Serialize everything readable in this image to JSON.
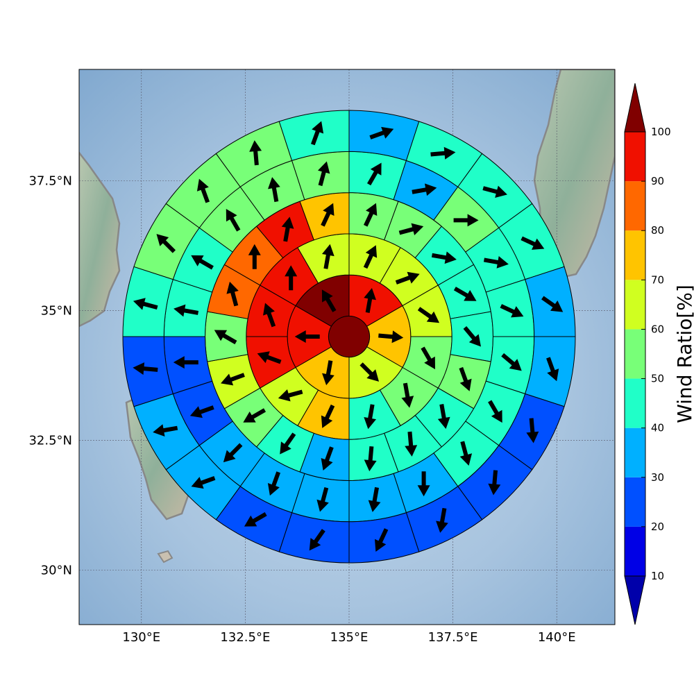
{
  "chart_data": {
    "type": "polar-sector-map",
    "title": "",
    "center_lon": 135.0,
    "center_lat": 34.5,
    "lon_ticks": [
      130,
      132.5,
      135,
      137.5,
      140
    ],
    "lon_tick_labels": [
      "130°E",
      "132.5°E",
      "135°E",
      "137.5°E",
      "140°E"
    ],
    "lat_ticks": [
      30,
      32.5,
      35,
      37.5
    ],
    "lat_tick_labels": [
      "30°N",
      "32.5°N",
      "35°N",
      "37.5°N"
    ],
    "xlim": [
      128.5,
      141.4
    ],
    "ylim": [
      28.95,
      39.65
    ],
    "grid": true,
    "colorbar": {
      "label": "Wind Ratio[%]",
      "levels": [
        10,
        20,
        30,
        40,
        50,
        60,
        70,
        80,
        90,
        100
      ],
      "level_labels": [
        "10",
        "20",
        "30",
        "40",
        "50",
        "60",
        "70",
        "80",
        "90",
        "100"
      ],
      "colors": [
        "#0000aa",
        "#0000e6",
        "#0050ff",
        "#00b0ff",
        "#20ffc8",
        "#78ff78",
        "#d0ff20",
        "#ffc400",
        "#ff6800",
        "#f01000",
        "#800000"
      ],
      "extend": "both"
    },
    "center": {
      "wind_ratio": 100,
      "dir_deg": 0,
      "arrow": false
    },
    "rings": [
      {
        "radius_km": [
          50,
          150
        ],
        "values": [
          95,
          75,
          65,
          70,
          95,
          100
        ],
        "arrow_dir_deg": [
          10,
          95,
          135,
          190,
          270,
          330
        ]
      },
      {
        "radius_km": [
          150,
          250
        ],
        "values": [
          65,
          65,
          65,
          55,
          55,
          45,
          70,
          65,
          95,
          95,
          95,
          65
        ],
        "arrow_dir_deg": [
          25,
          70,
          125,
          150,
          170,
          190,
          205,
          255,
          290,
          340,
          0,
          10
        ]
      },
      {
        "radius_km": [
          250,
          350
        ],
        "values": [
          55,
          55,
          45,
          45,
          45,
          55,
          45,
          45,
          45,
          35,
          45,
          55,
          65,
          55,
          85,
          85,
          95,
          75
        ],
        "arrow_dir_deg": [
          25,
          75,
          100,
          120,
          140,
          160,
          170,
          175,
          185,
          200,
          215,
          240,
          250,
          300,
          345,
          0,
          10,
          25
        ]
      },
      {
        "radius_km": [
          350,
          450
        ],
        "values": [
          45,
          35,
          55,
          45,
          45,
          45,
          45,
          45,
          35,
          35,
          35,
          35,
          35,
          25,
          25,
          45,
          45,
          55,
          55,
          55
        ],
        "arrow_dir_deg": [
          30,
          80,
          90,
          100,
          115,
          130,
          150,
          165,
          180,
          190,
          195,
          200,
          225,
          250,
          270,
          280,
          300,
          330,
          350,
          15
        ]
      },
      {
        "radius_km": [
          450,
          550
        ],
        "values": [
          35,
          45,
          45,
          45,
          35,
          35,
          25,
          25,
          25,
          25,
          25,
          25,
          35,
          35,
          25,
          45,
          55,
          55,
          55,
          45
        ],
        "arrow_dir_deg": [
          70,
          85,
          105,
          115,
          125,
          160,
          175,
          185,
          190,
          205,
          215,
          240,
          250,
          260,
          275,
          285,
          315,
          340,
          355,
          20
        ]
      }
    ]
  }
}
